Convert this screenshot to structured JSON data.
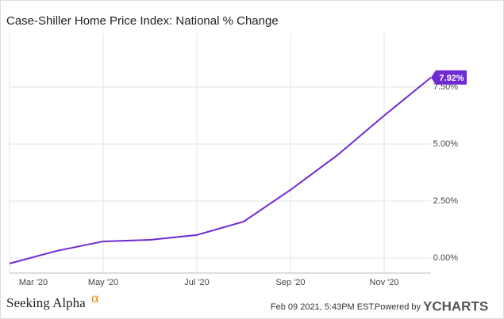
{
  "chart_data": {
    "type": "line",
    "title": "Case-Shiller Home Price Index: National % Change",
    "categories": [
      "Mar '20",
      null,
      "May '20",
      null,
      "Jul '20",
      null,
      "Sep '20",
      null,
      "Nov '20",
      null
    ],
    "series": [
      {
        "name": "Case-Shiller Home Price Index: National % Change",
        "color": "#6f2bd3",
        "values": [
          -0.24,
          0.31,
          0.73,
          0.8,
          1.01,
          1.6,
          2.99,
          4.51,
          6.25,
          7.92
        ],
        "value_labels": [
          null,
          null,
          null,
          null,
          null,
          null,
          null,
          null,
          null,
          "7.92%"
        ]
      }
    ],
    "ylim": [
      -0.66,
      9.86
    ],
    "yticks": [
      {
        "value": 0,
        "label": "0.00%"
      },
      {
        "value": 2.5,
        "label": "2.50%"
      },
      {
        "value": 5,
        "label": "5.00%"
      },
      {
        "value": 7.5,
        "label": "7.50%"
      }
    ],
    "grid": true
  },
  "footer": {
    "source": "Seeking Alpha",
    "logo_mark": "α",
    "timestamp": "Feb 09 2021, 5:43PM EST.",
    "powered_by": "Powered by",
    "brand": "YCHARTS"
  }
}
